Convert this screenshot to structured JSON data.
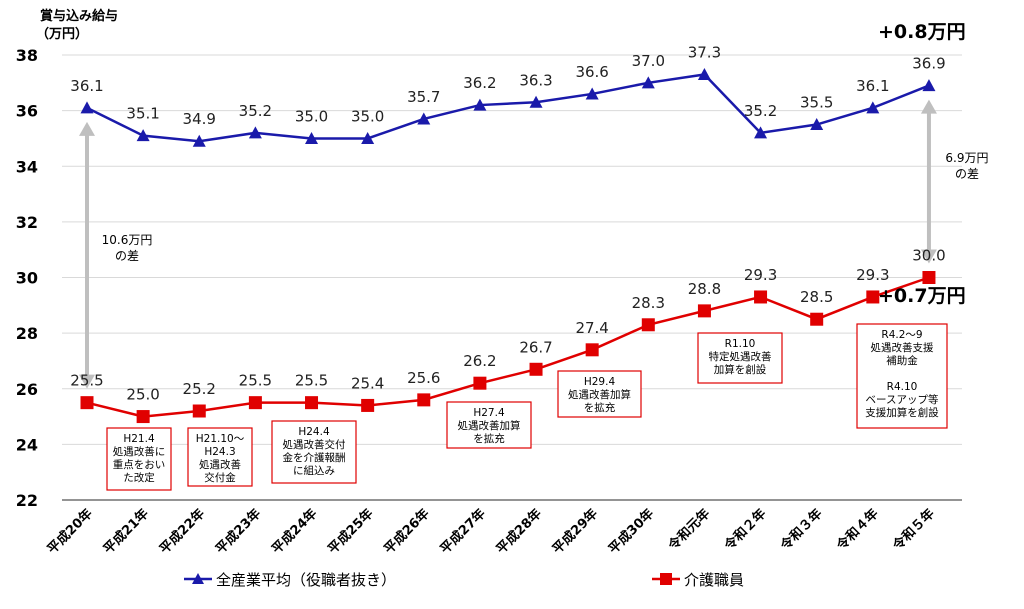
{
  "chart_data": {
    "type": "line",
    "ylabel_line1": "賞与込み給与",
    "ylabel_line2": "（万円）",
    "ylim": [
      22,
      38
    ],
    "yticks": [
      22,
      24,
      26,
      28,
      30,
      32,
      34,
      36,
      38
    ],
    "categories": [
      "平成20年",
      "平成21年",
      "平成22年",
      "平成23年",
      "平成24年",
      "平成25年",
      "平成26年",
      "平成27年",
      "平成28年",
      "平成29年",
      "平成30年",
      "令和元年",
      "令和２年",
      "令和３年",
      "令和４年",
      "令和５年"
    ],
    "series": [
      {
        "name": "全産業平均（役職者抜き）",
        "color": "#1a1aaa",
        "marker": "triangle",
        "values": [
          36.1,
          35.1,
          34.9,
          35.2,
          35.0,
          35.0,
          35.7,
          36.2,
          36.3,
          36.6,
          37.0,
          37.3,
          35.2,
          35.5,
          36.1,
          36.9
        ],
        "labels": [
          "36.1",
          "35.1",
          "34.9",
          "35.2",
          "35.0",
          "35.0",
          "35.7",
          "36.2",
          "36.3",
          "36.6",
          "37.0",
          "37.3",
          "35.2",
          "35.5",
          "36.1",
          "36.9"
        ]
      },
      {
        "name": "介護職員",
        "color": "#e00000",
        "marker": "square",
        "values": [
          25.5,
          25.0,
          25.2,
          25.5,
          25.5,
          25.4,
          25.6,
          26.2,
          26.7,
          27.4,
          28.3,
          28.8,
          29.3,
          28.5,
          29.3,
          30.0
        ],
        "labels": [
          "25.5",
          "25.0",
          "25.2",
          "25.5",
          "25.5",
          "25.4",
          "25.6",
          "26.2",
          "26.7",
          "27.4",
          "28.3",
          "28.8",
          "29.3",
          "28.5",
          "29.3",
          "30.0"
        ]
      }
    ],
    "highlights": {
      "top_change": "+0.8万円",
      "bottom_change": "+0.7万円"
    },
    "gap_annotations": [
      {
        "lines": [
          "10.6万円",
          "の差"
        ],
        "category_index": 0,
        "from": 25.5,
        "to": 36.1
      },
      {
        "lines": [
          "6.9万円",
          "の差"
        ],
        "category_index": 15,
        "from": 30.0,
        "to": 36.9
      }
    ],
    "policy_notes": [
      {
        "lines": [
          "H21.4",
          "処遇改善に",
          "重点をおい",
          "た改定"
        ],
        "category_index": 1
      },
      {
        "lines": [
          "H21.10～",
          "H24.3",
          "処遇改善",
          "交付金"
        ],
        "category_index": 2
      },
      {
        "lines": [
          "H24.4",
          "処遇改善交付",
          "金を介護報酬",
          "に組込み"
        ],
        "category_index": 4
      },
      {
        "lines": [
          "H27.4",
          "処遇改善加算",
          "を拡充"
        ],
        "category_index": 7
      },
      {
        "lines": [
          "H29.4",
          "処遇改善加算",
          "を拡充"
        ],
        "category_index": 9
      },
      {
        "lines": [
          "R1.10",
          "特定処遇改善",
          "加算を創設"
        ],
        "category_index": 11
      },
      {
        "lines": [
          "R4.2～9",
          "処遇改善支援",
          "補助金",
          "",
          "R4.10",
          "ベースアップ等",
          "支援加算を創設"
        ],
        "category_index": 14
      }
    ]
  }
}
